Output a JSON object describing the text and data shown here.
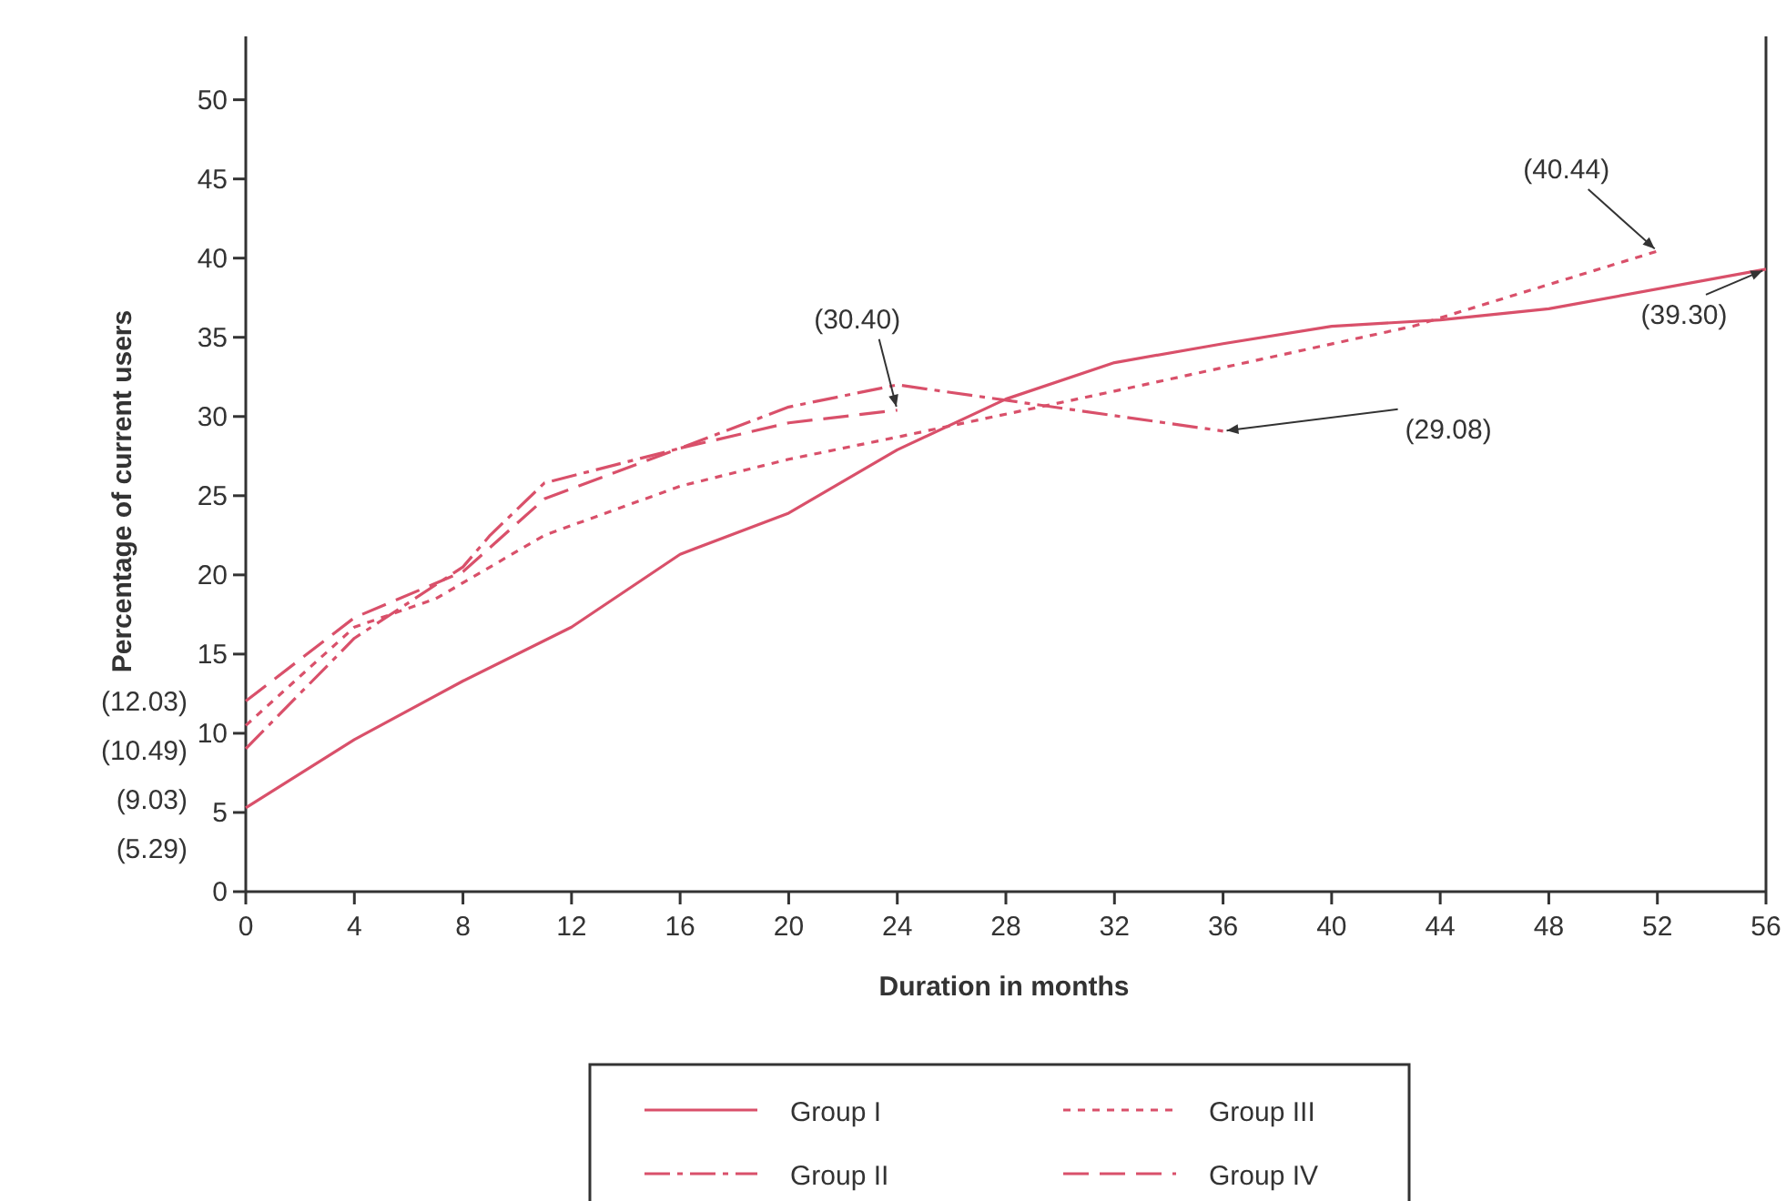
{
  "chart_data": {
    "type": "line",
    "xlabel": "Duration in months",
    "ylabel": "Percentage of current users",
    "xlim": [
      0,
      56
    ],
    "xticks": [
      0,
      4,
      8,
      12,
      16,
      20,
      24,
      28,
      32,
      36,
      40,
      44,
      48,
      52,
      56
    ],
    "ylim": [
      0,
      54
    ],
    "yticks": [
      0,
      5,
      10,
      15,
      20,
      25,
      30,
      35,
      40,
      45,
      50
    ],
    "grid": false,
    "legend": "bottom",
    "marker": "none",
    "series": [
      {
        "name": "Group I",
        "color": "#d9506a",
        "line_style": "solid",
        "x": [
          0,
          4,
          8,
          12,
          16,
          20,
          24,
          28,
          32,
          36,
          40,
          44,
          48,
          56
        ],
        "values": [
          5.29,
          9.6,
          13.3,
          16.7,
          21.3,
          23.9,
          27.9,
          31.1,
          33.4,
          34.6,
          35.7,
          36.1,
          36.8,
          39.3
        ]
      },
      {
        "name": "Group II",
        "color": "#d9506a",
        "line_style": "dashdot",
        "x": [
          0,
          4,
          8,
          9,
          11,
          16,
          20,
          24,
          36
        ],
        "values": [
          9.03,
          16,
          20.5,
          22.5,
          25.8,
          28,
          30.6,
          32,
          29.08
        ]
      },
      {
        "name": "Group III",
        "color": "#d9506a",
        "line_style": "dotted",
        "x": [
          0,
          4,
          5,
          7,
          11,
          16,
          20,
          24,
          32,
          43,
          52
        ],
        "values": [
          10.49,
          16.7,
          17.3,
          18.5,
          22.5,
          25.6,
          27.3,
          28.7,
          31.6,
          35.7,
          40.44
        ]
      },
      {
        "name": "Group IV",
        "color": "#d9506a",
        "line_style": "dashed",
        "x": [
          0,
          4,
          8,
          11,
          16,
          20,
          24
        ],
        "values": [
          12.03,
          17.3,
          20.2,
          24.8,
          28,
          29.6,
          30.4
        ]
      }
    ],
    "annotations": [
      {
        "text": "(12.03)",
        "x": 0,
        "y": 12.03
      },
      {
        "text": "(10.49)",
        "x": 0,
        "y": 10.49
      },
      {
        "text": "(9.03)",
        "x": 0,
        "y": 9.03
      },
      {
        "text": "(5.29)",
        "x": 0,
        "y": 5.29
      },
      {
        "text": "(30.40)",
        "x": 24,
        "y": 30.4
      },
      {
        "text": "(29.08)",
        "x": 36,
        "y": 29.08
      },
      {
        "text": "(40.44)",
        "x": 52,
        "y": 40.44
      },
      {
        "text": "(39.30)",
        "x": 56,
        "y": 39.3
      }
    ]
  }
}
